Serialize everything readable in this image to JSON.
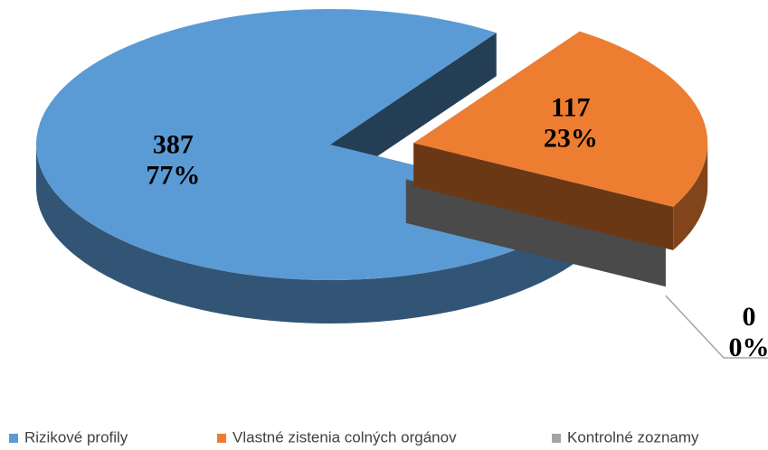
{
  "chart_data": {
    "type": "pie",
    "categories": [
      "Rizikové profily",
      "Vlastné zistenia colných orgánov",
      "Kontrolné zoznamy"
    ],
    "values": [
      387,
      117,
      0
    ],
    "percent_labels": [
      "77%",
      "23%",
      "0%"
    ],
    "colors": [
      "#5b9bd5",
      "#ed7d31",
      "#a5a5a5"
    ],
    "legend": "bottom"
  }
}
